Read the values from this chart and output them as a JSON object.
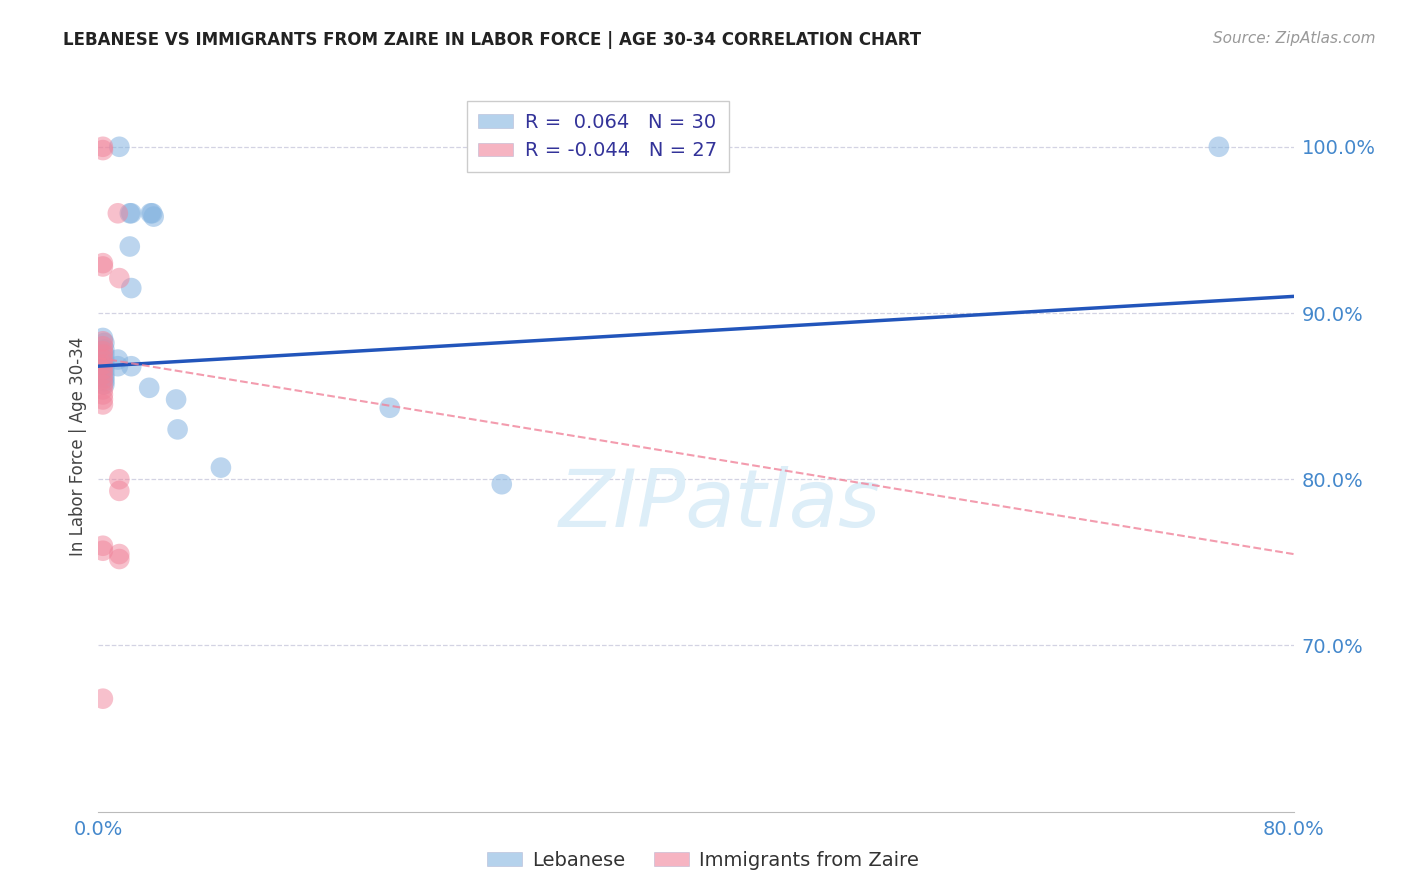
{
  "title": "LEBANESE VS IMMIGRANTS FROM ZAIRE IN LABOR FORCE | AGE 30-34 CORRELATION CHART",
  "source": "Source: ZipAtlas.com",
  "ylabel": "In Labor Force | Age 30-34",
  "legend_label1": "Lebanese",
  "legend_label2": "Immigrants from Zaire",
  "r1": 0.064,
  "n1": 30,
  "r2": -0.044,
  "n2": 27,
  "color_blue": "#85B4E0",
  "color_pink": "#F0839A",
  "color_line_blue": "#2255BB",
  "color_line_pink": "#F0839A",
  "xlim": [
    0.0,
    0.8
  ],
  "ylim": [
    0.6,
    1.04
  ],
  "yticks": [
    0.7,
    0.8,
    0.9,
    1.0
  ],
  "ytick_labels": [
    "70.0%",
    "80.0%",
    "90.0%",
    "100.0%"
  ],
  "xticks": [
    0.0,
    0.1,
    0.2,
    0.3,
    0.4,
    0.5,
    0.6,
    0.7,
    0.8
  ],
  "xtick_labels": [
    "0.0%",
    "",
    "",
    "",
    "",
    "",
    "",
    "",
    "80.0%"
  ],
  "blue_points": [
    [
      0.014,
      1.0
    ],
    [
      0.021,
      0.96
    ],
    [
      0.022,
      0.96
    ],
    [
      0.035,
      0.96
    ],
    [
      0.036,
      0.96
    ],
    [
      0.037,
      0.958
    ],
    [
      0.021,
      0.94
    ],
    [
      0.022,
      0.915
    ],
    [
      0.003,
      0.885
    ],
    [
      0.004,
      0.882
    ],
    [
      0.004,
      0.878
    ],
    [
      0.004,
      0.875
    ],
    [
      0.004,
      0.872
    ],
    [
      0.004,
      0.87
    ],
    [
      0.004,
      0.868
    ],
    [
      0.004,
      0.866
    ],
    [
      0.004,
      0.863
    ],
    [
      0.004,
      0.861
    ],
    [
      0.004,
      0.859
    ],
    [
      0.004,
      0.857
    ],
    [
      0.013,
      0.872
    ],
    [
      0.013,
      0.868
    ],
    [
      0.022,
      0.868
    ],
    [
      0.034,
      0.855
    ],
    [
      0.052,
      0.848
    ],
    [
      0.053,
      0.83
    ],
    [
      0.082,
      0.807
    ],
    [
      0.195,
      0.843
    ],
    [
      0.27,
      0.797
    ],
    [
      0.75,
      1.0
    ]
  ],
  "pink_points": [
    [
      0.003,
      1.0
    ],
    [
      0.003,
      0.998
    ],
    [
      0.013,
      0.96
    ],
    [
      0.003,
      0.93
    ],
    [
      0.003,
      0.928
    ],
    [
      0.014,
      0.921
    ],
    [
      0.003,
      0.883
    ],
    [
      0.003,
      0.88
    ],
    [
      0.003,
      0.877
    ],
    [
      0.003,
      0.875
    ],
    [
      0.003,
      0.872
    ],
    [
      0.003,
      0.869
    ],
    [
      0.003,
      0.866
    ],
    [
      0.003,
      0.863
    ],
    [
      0.003,
      0.86
    ],
    [
      0.003,
      0.857
    ],
    [
      0.003,
      0.854
    ],
    [
      0.003,
      0.851
    ],
    [
      0.003,
      0.848
    ],
    [
      0.003,
      0.845
    ],
    [
      0.014,
      0.8
    ],
    [
      0.014,
      0.793
    ],
    [
      0.003,
      0.76
    ],
    [
      0.003,
      0.757
    ],
    [
      0.014,
      0.755
    ],
    [
      0.014,
      0.752
    ],
    [
      0.003,
      0.668
    ]
  ],
  "blue_line_x0": 0.0,
  "blue_line_y0": 0.868,
  "blue_line_x1": 0.8,
  "blue_line_y1": 0.91,
  "pink_line_x0": 0.0,
  "pink_line_y0": 0.873,
  "pink_line_x1": 0.8,
  "pink_line_y1": 0.755,
  "watermark": "ZIPatlas",
  "background_color": "#FFFFFF",
  "grid_color": "#C8C8DC",
  "tick_color": "#4488CC"
}
